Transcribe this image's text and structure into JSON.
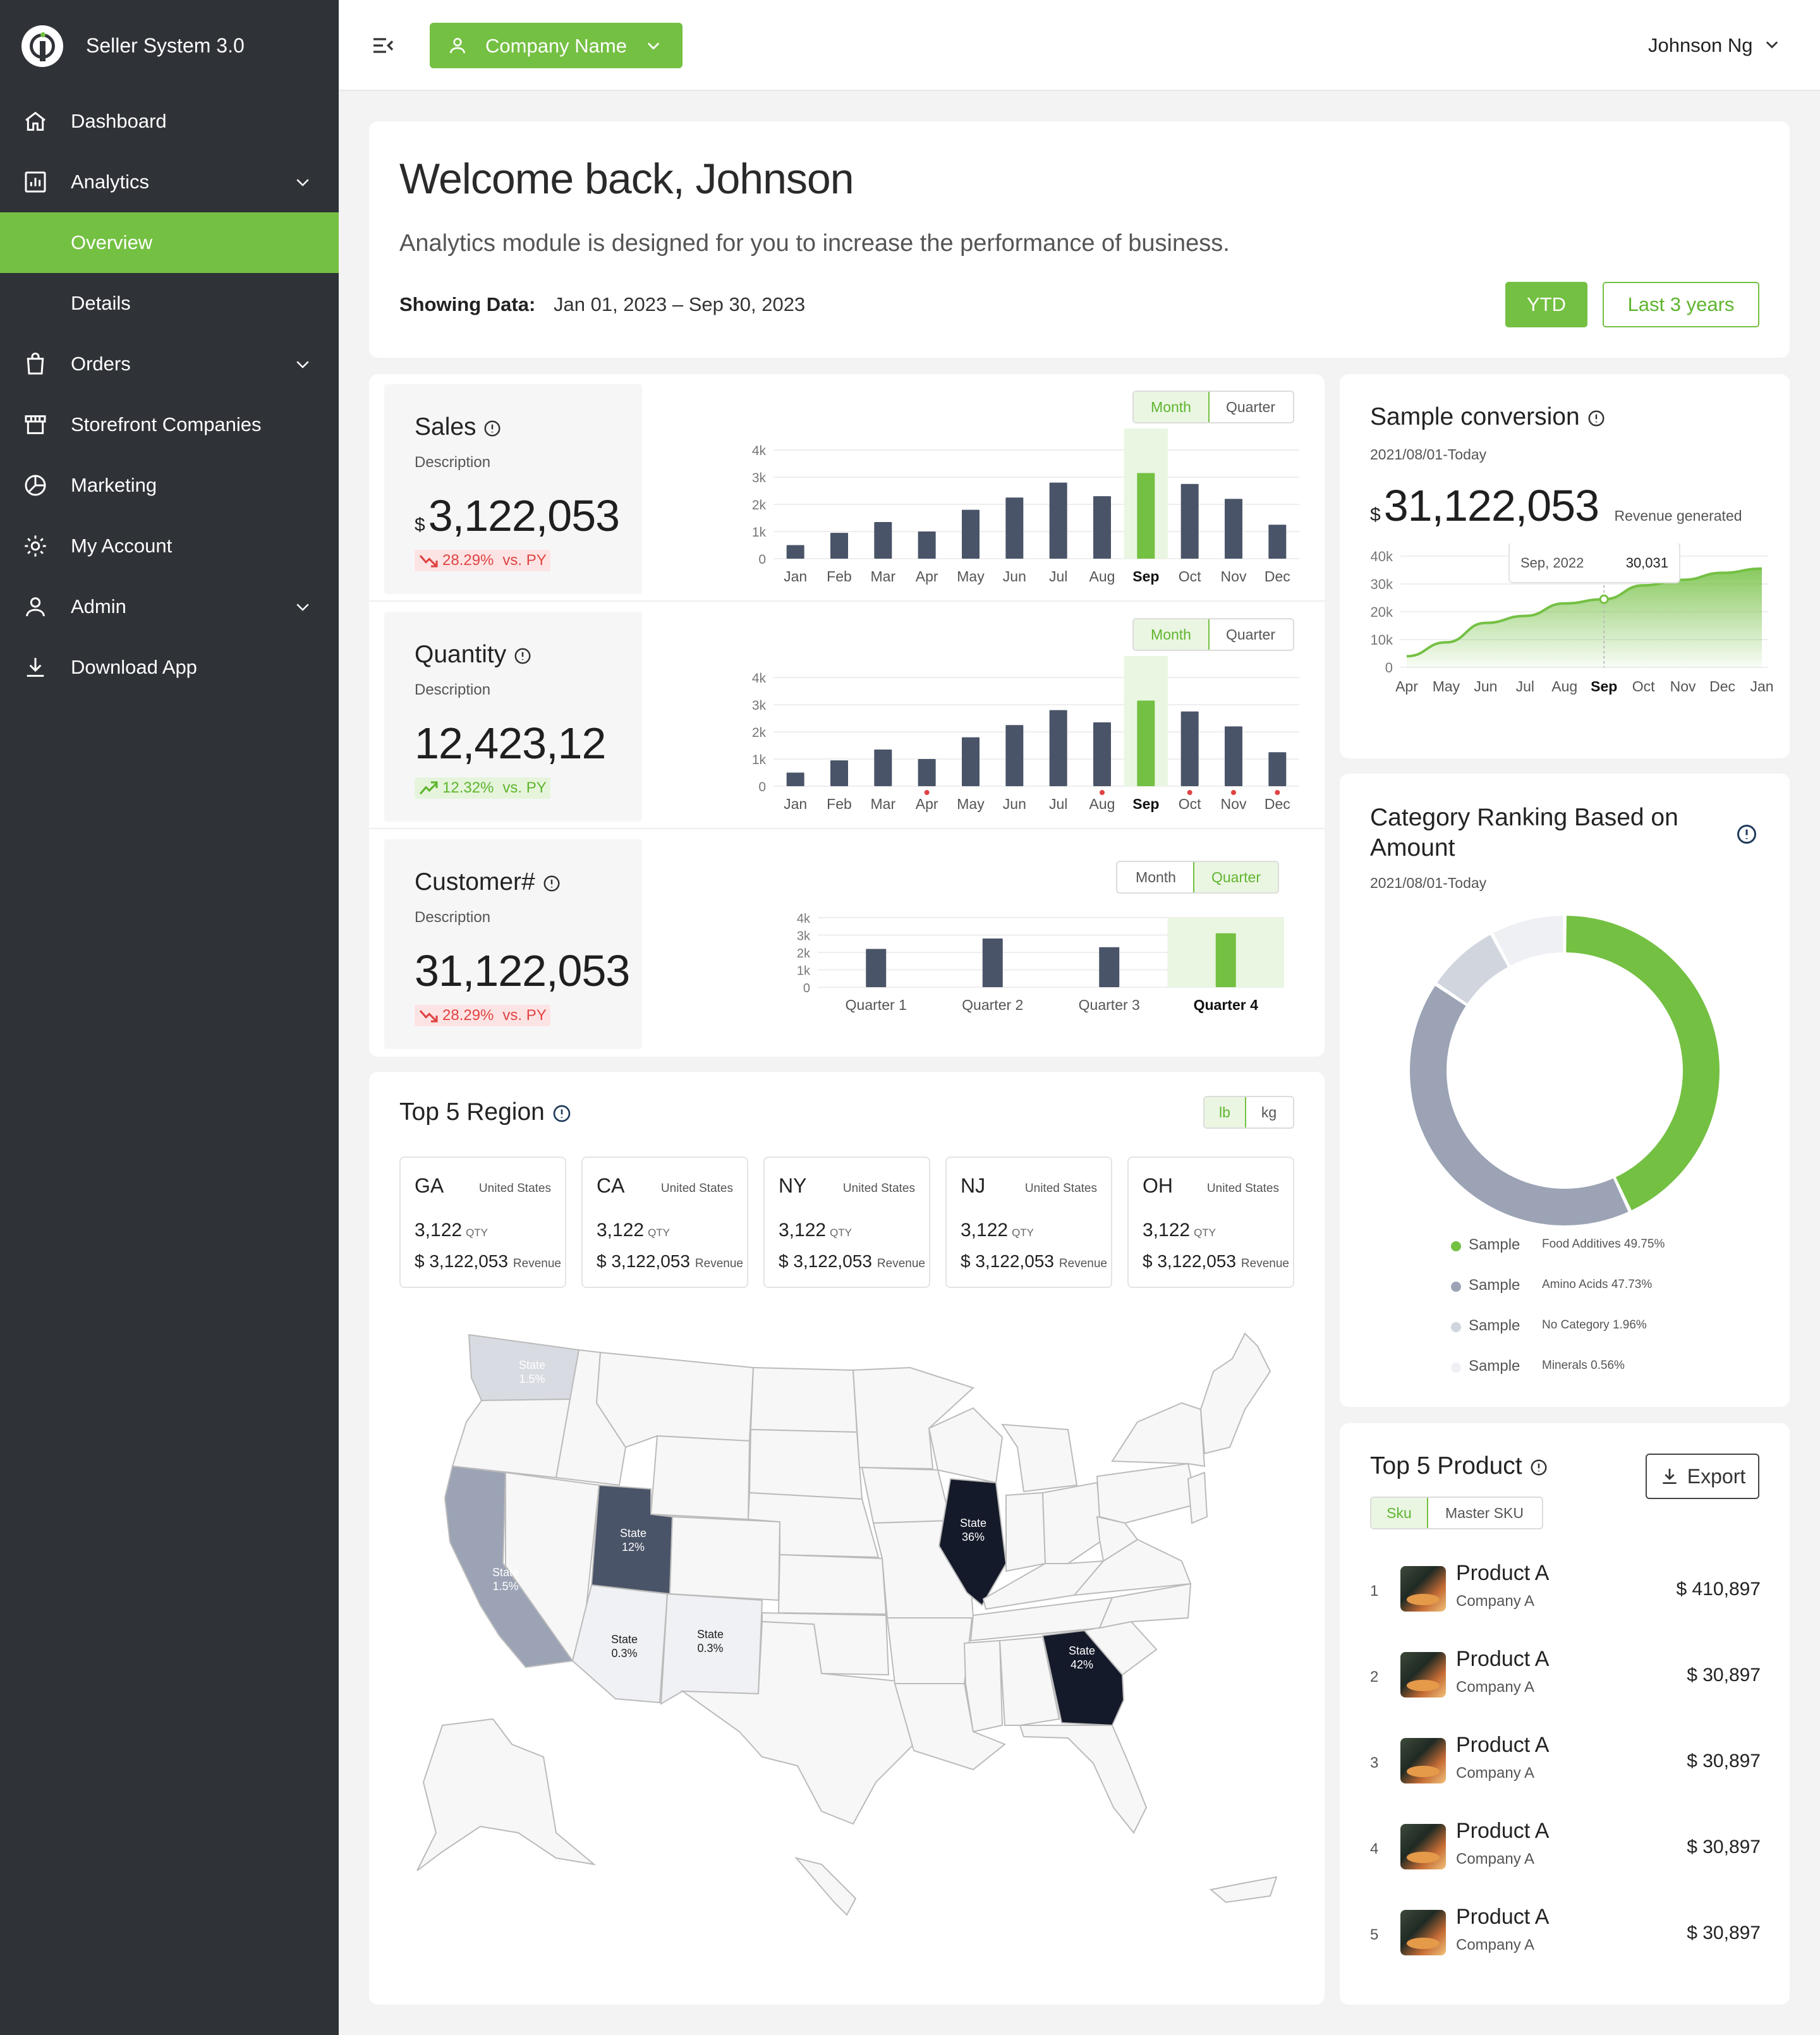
{
  "app": {
    "title": "Seller System 3.0"
  },
  "sidebar": {
    "items": [
      {
        "label": "Dashboard"
      },
      {
        "label": "Analytics"
      },
      {
        "label": "Overview"
      },
      {
        "label": "Details"
      },
      {
        "label": "Orders"
      },
      {
        "label": "Storefront Companies"
      },
      {
        "label": "Marketing"
      },
      {
        "label": "My Account"
      },
      {
        "label": "Admin"
      },
      {
        "label": "Download App"
      }
    ]
  },
  "topbar": {
    "company_label": "Company Name",
    "user_name": "Johnson Ng"
  },
  "welcome": {
    "title": "Welcome back, Johnson",
    "subtitle": "Analytics module is designed for you to increase the performance of business.",
    "showing_label": "Showing Data:",
    "date_range": "Jan 01, 2023 – Sep 30, 2023",
    "ytd_label": "YTD",
    "last3_label": "Last 3 years"
  },
  "toggles": {
    "month": "Month",
    "quarter": "Quarter",
    "lb": "lb",
    "kg": "kg",
    "sku": "Sku",
    "master_sku": "Master SKU"
  },
  "kpis": {
    "sales": {
      "title": "Sales",
      "desc": "Description",
      "currency": "$",
      "value": "3,122,053",
      "change": "28.29%",
      "vs": "vs. PY"
    },
    "quantity": {
      "title": "Quantity",
      "desc": "Description",
      "value": "12,423,12",
      "change": "12.32%",
      "vs": "vs. PY"
    },
    "customer": {
      "title": "Customer#",
      "desc": "Description",
      "value": "31,122,053",
      "change": "28.29%",
      "vs": "vs. PY"
    }
  },
  "chart_data": [
    {
      "type": "bar",
      "name": "sales-month",
      "categories": [
        "Jan",
        "Feb",
        "Mar",
        "Apr",
        "May",
        "Jun",
        "Jul",
        "Aug",
        "Sep",
        "Oct",
        "Nov",
        "Dec"
      ],
      "values": [
        500,
        950,
        1350,
        1000,
        1800,
        2250,
        2800,
        2300,
        3150,
        2750,
        2200,
        1250
      ],
      "highlight": "Sep",
      "y_ticks": [
        "4k",
        "3k",
        "2k",
        "1k",
        "0"
      ],
      "ylim": [
        0,
        4000
      ],
      "highlight_color": "#74c043",
      "bar_color": "#4a5468"
    },
    {
      "type": "bar",
      "name": "quantity-month",
      "categories": [
        "Jan",
        "Feb",
        "Mar",
        "Apr",
        "May",
        "Jun",
        "Jul",
        "Aug",
        "Sep",
        "Oct",
        "Nov",
        "Dec"
      ],
      "values": [
        500,
        950,
        1350,
        1000,
        1800,
        2250,
        2800,
        2350,
        3150,
        2750,
        2200,
        1250
      ],
      "highlight": "Sep",
      "alerts": [
        "Apr",
        "Aug",
        "Oct",
        "Nov",
        "Dec"
      ],
      "y_ticks": [
        "4k",
        "3k",
        "2k",
        "1k",
        "0"
      ],
      "ylim": [
        0,
        4000
      ]
    },
    {
      "type": "bar",
      "name": "customer-quarter",
      "categories": [
        "Quarter 1",
        "Quarter 2",
        "Quarter 3",
        "Quarter 4"
      ],
      "values": [
        2200,
        2800,
        2300,
        3100
      ],
      "highlight": "Quarter 4",
      "y_ticks": [
        "4k",
        "3k",
        "2k",
        "1k",
        "0"
      ],
      "ylim": [
        0,
        4000
      ]
    },
    {
      "type": "area",
      "name": "sample-conversion",
      "categories": [
        "Apr",
        "May",
        "Jun",
        "Jul",
        "Aug",
        "Sep",
        "Oct",
        "Nov",
        "Dec",
        "Jan"
      ],
      "values": [
        4000,
        9000,
        16000,
        18500,
        23000,
        24500,
        29500,
        31500,
        34000,
        35500
      ],
      "highlight": "Sep",
      "y_ticks": [
        "40k",
        "30k",
        "20k",
        "10k",
        "0"
      ],
      "ylim": [
        0,
        40000
      ],
      "tooltip": {
        "label": "Sep, 2022",
        "value": "30,031"
      }
    },
    {
      "type": "pie",
      "name": "category-ranking",
      "labels": [
        "Food Additives",
        "Amino Acids",
        "No Category",
        "Minerals"
      ],
      "values": [
        49.75,
        47.73,
        1.96,
        0.56
      ],
      "colors": [
        "#74c043",
        "#9ba3b5",
        "#d1d5de",
        "#eef0f4"
      ]
    }
  ],
  "conversion": {
    "title": "Sample conversion",
    "date": "2021/08/01-Today",
    "currency": "$",
    "value": "31,122,053",
    "note": "Revenue generated"
  },
  "category": {
    "title": "Category Ranking Based on Amount",
    "date": "2021/08/01-Today",
    "legend": [
      {
        "name": "Sample",
        "value": "Food Additives 49.75%"
      },
      {
        "name": "Sample",
        "value": "Amino Acids 47.73%"
      },
      {
        "name": "Sample",
        "value": "No Category 1.96%"
      },
      {
        "name": "Sample",
        "value": "Minerals 0.56%"
      }
    ]
  },
  "region": {
    "title": "Top 5 Region",
    "items": [
      {
        "code": "GA",
        "country": "United States",
        "qty": "3,122",
        "qty_unit": "QTY",
        "rev": "$ 3,122,053",
        "rev_label": "Revenue"
      },
      {
        "code": "CA",
        "country": "United States",
        "qty": "3,122",
        "qty_unit": "QTY",
        "rev": "$ 3,122,053",
        "rev_label": "Revenue"
      },
      {
        "code": "NY",
        "country": "United States",
        "qty": "3,122",
        "qty_unit": "QTY",
        "rev": "$ 3,122,053",
        "rev_label": "Revenue"
      },
      {
        "code": "NJ",
        "country": "United States",
        "qty": "3,122",
        "qty_unit": "QTY",
        "rev": "$ 3,122,053",
        "rev_label": "Revenue"
      },
      {
        "code": "OH",
        "country": "United States",
        "qty": "3,122",
        "qty_unit": "QTY",
        "rev": "$ 3,122,053",
        "rev_label": "Revenue"
      }
    ],
    "map": {
      "state_word": "State",
      "wa": "1.5%",
      "ca": "1.5%",
      "ut": "12%",
      "az": "0.3%",
      "nm": "0.3%",
      "il": "36%",
      "ga": "42%"
    }
  },
  "products": {
    "title": "Top 5 Product",
    "export_label": "Export",
    "items": [
      {
        "rank": "1",
        "name": "Product A",
        "company": "Company A",
        "price": "$ 410,897"
      },
      {
        "rank": "2",
        "name": "Product A",
        "company": "Company A",
        "price": "$ 30,897"
      },
      {
        "rank": "3",
        "name": "Product A",
        "company": "Company A",
        "price": "$ 30,897"
      },
      {
        "rank": "4",
        "name": "Product A",
        "company": "Company A",
        "price": "$ 30,897"
      },
      {
        "rank": "5",
        "name": "Product A",
        "company": "Company A",
        "price": "$ 30,897"
      }
    ]
  },
  "colors": {
    "accent": "#74c043",
    "sidebar": "#2f3237",
    "bar": "#4a5468",
    "negative": "#e04343"
  }
}
